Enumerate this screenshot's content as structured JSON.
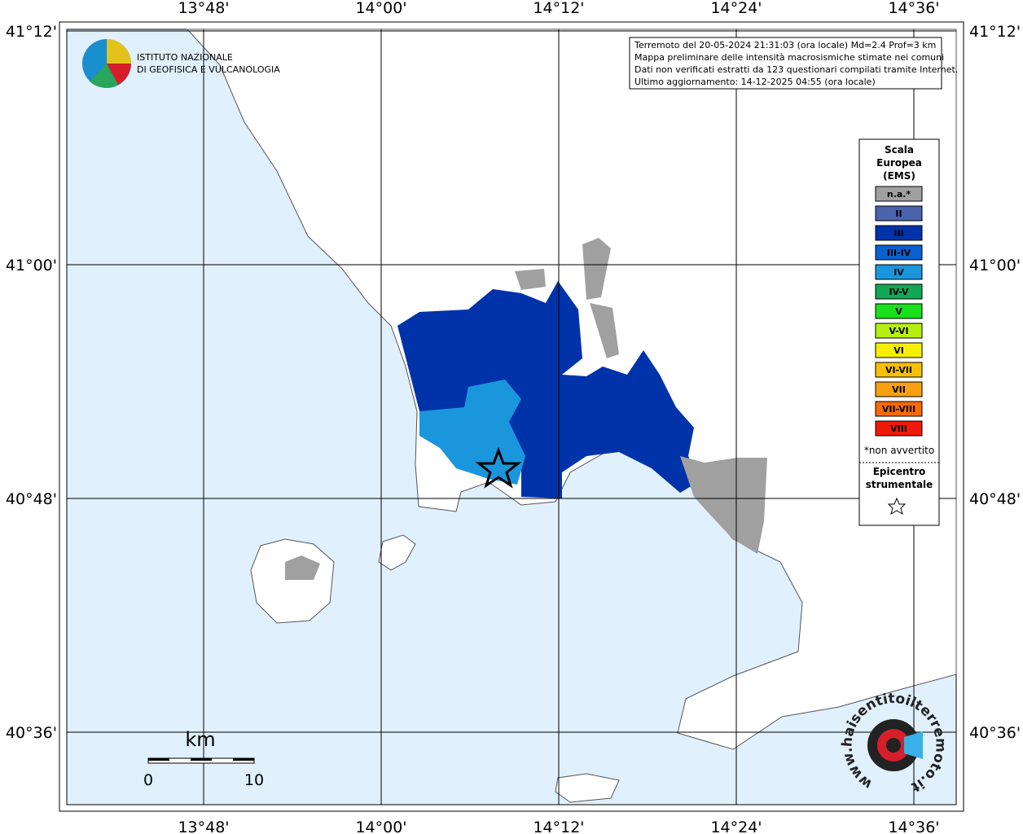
{
  "header": {
    "institute_lines": [
      "ISTITUTO NAZIONALE",
      "DI GEOFISICA E VULCANOLOGIA"
    ]
  },
  "info": {
    "lines": [
      "Terremoto del 20-05-2024 21:31:03 (ora locale) Md=2.4 Prof=3 km",
      "Mappa preliminare delle intensità macrosismiche stimate nei comuni",
      "Dati non verificati estratti da 123 questionari compilati tramite Internet.",
      "Ultimo aggiornamento: 14-12-2025 04:55 (ora locale)"
    ]
  },
  "axes": {
    "lon_labels": [
      "13°48'",
      "14°00'",
      "14°12'",
      "14°24'",
      "14°36'"
    ],
    "lat_labels": [
      "41°12'",
      "41°00'",
      "40°48'",
      "40°36'"
    ]
  },
  "legend": {
    "title_lines": [
      "Scala",
      "Europea",
      "(EMS)"
    ],
    "items": [
      {
        "label": "n.a.*",
        "color": "#a0a0a0"
      },
      {
        "label": "II",
        "color": "#4a63ad"
      },
      {
        "label": "III",
        "color": "#0033aa"
      },
      {
        "label": "III-IV",
        "color": "#0a62d0"
      },
      {
        "label": "IV",
        "color": "#1a96dc"
      },
      {
        "label": "IV-V",
        "color": "#12a855"
      },
      {
        "label": "V",
        "color": "#18e01c"
      },
      {
        "label": "V-VI",
        "color": "#b6f010"
      },
      {
        "label": "VI",
        "color": "#f6f000"
      },
      {
        "label": "VI-VII",
        "color": "#f8c000"
      },
      {
        "label": "VII",
        "color": "#f8a010"
      },
      {
        "label": "VII-VIII",
        "color": "#f86a00"
      },
      {
        "label": "VIII",
        "color": "#f01a0a"
      }
    ],
    "note": "*non avvertito",
    "epicenter_lines": [
      "Epicentro",
      "strumentale"
    ]
  },
  "scale_bar": {
    "unit": "km",
    "labels": [
      "0",
      "10"
    ]
  },
  "footer": {
    "site": "www.haisentitoilterremoto.it"
  }
}
